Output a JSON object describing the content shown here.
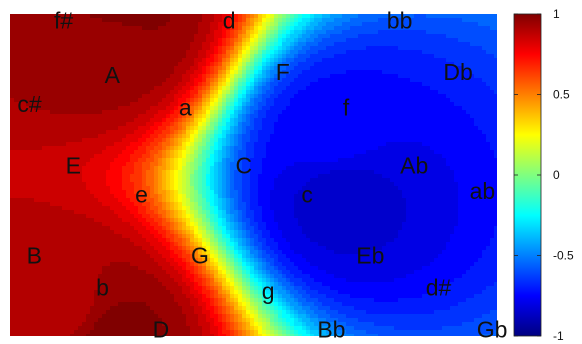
{
  "chart_data": {
    "type": "heatmap",
    "title": "",
    "xlabel": "",
    "ylabel": "",
    "colormap": "jet",
    "color_range": [
      -1,
      1
    ],
    "colorbar": {
      "ticks": [
        {
          "value": 1,
          "label": "1"
        },
        {
          "value": 0.5,
          "label": "0.5"
        },
        {
          "value": 0,
          "label": "0"
        },
        {
          "value": -0.5,
          "label": "-0.5"
        },
        {
          "value": -1,
          "label": "-1"
        }
      ]
    },
    "centers": [
      {
        "u": 0.23,
        "v": 0.0,
        "value": 1.0
      },
      {
        "u": 0.22,
        "v": 0.06,
        "value": 0.95
      },
      {
        "u": 0.2,
        "v": 1.0,
        "value": 1.0
      },
      {
        "u": 0.12,
        "v": 0.93,
        "value": 0.9
      },
      {
        "u": 0.68,
        "v": 0.56,
        "value": -0.85
      },
      {
        "u": 0.66,
        "v": 0.38,
        "value": -0.75
      }
    ],
    "background_value": 0.25,
    "keys": [
      {
        "label": "f#",
        "u": 0.11,
        "v": 0.02
      },
      {
        "label": "d",
        "u": 0.45,
        "v": 0.02
      },
      {
        "label": "bb",
        "u": 0.8,
        "v": 0.02
      },
      {
        "label": "A",
        "u": 0.21,
        "v": 0.19
      },
      {
        "label": "F",
        "u": 0.56,
        "v": 0.18
      },
      {
        "label": "Db",
        "u": 0.92,
        "v": 0.18
      },
      {
        "label": "c#",
        "u": 0.04,
        "v": 0.28
      },
      {
        "label": "a",
        "u": 0.36,
        "v": 0.29
      },
      {
        "label": "f",
        "u": 0.69,
        "v": 0.29
      },
      {
        "label": "E",
        "u": 0.13,
        "v": 0.47
      },
      {
        "label": "C",
        "u": 0.48,
        "v": 0.47
      },
      {
        "label": "Ab",
        "u": 0.83,
        "v": 0.47
      },
      {
        "label": "e",
        "u": 0.27,
        "v": 0.56
      },
      {
        "label": "c",
        "u": 0.61,
        "v": 0.56
      },
      {
        "label": "ab",
        "u": 0.97,
        "v": 0.55
      },
      {
        "label": "B",
        "u": 0.05,
        "v": 0.75
      },
      {
        "label": "G",
        "u": 0.39,
        "v": 0.75
      },
      {
        "label": "Eb",
        "u": 0.74,
        "v": 0.75
      },
      {
        "label": "b",
        "u": 0.19,
        "v": 0.85
      },
      {
        "label": "g",
        "u": 0.53,
        "v": 0.86
      },
      {
        "label": "d#",
        "u": 0.88,
        "v": 0.85
      },
      {
        "label": "D",
        "u": 0.31,
        "v": 0.98
      },
      {
        "label": "Bb",
        "u": 0.66,
        "v": 0.98
      },
      {
        "label": "Gb",
        "u": 0.99,
        "v": 0.98
      }
    ]
  }
}
